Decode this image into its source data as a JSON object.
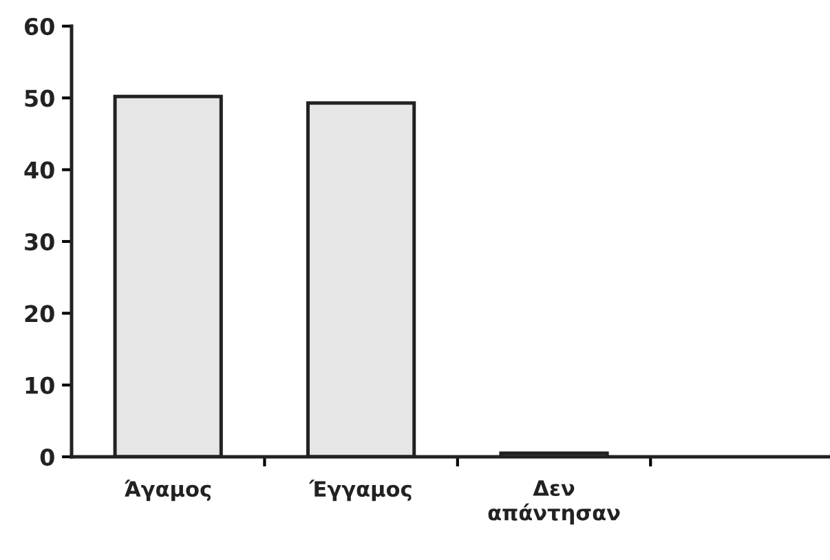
{
  "chart_data": {
    "type": "bar",
    "categories": [
      "Άγαμος",
      "Έγγαμος",
      "Δεν\nαπάντησαν",
      null
    ],
    "series": [
      {
        "color": "#e6e6e6",
        "values": [
          50.2,
          49.3,
          0.5,
          null
        ]
      }
    ],
    "ylim": [
      0,
      60
    ],
    "yticks": [
      0,
      10,
      20,
      30,
      40,
      50,
      60
    ],
    "grid": false,
    "legend": false
  }
}
